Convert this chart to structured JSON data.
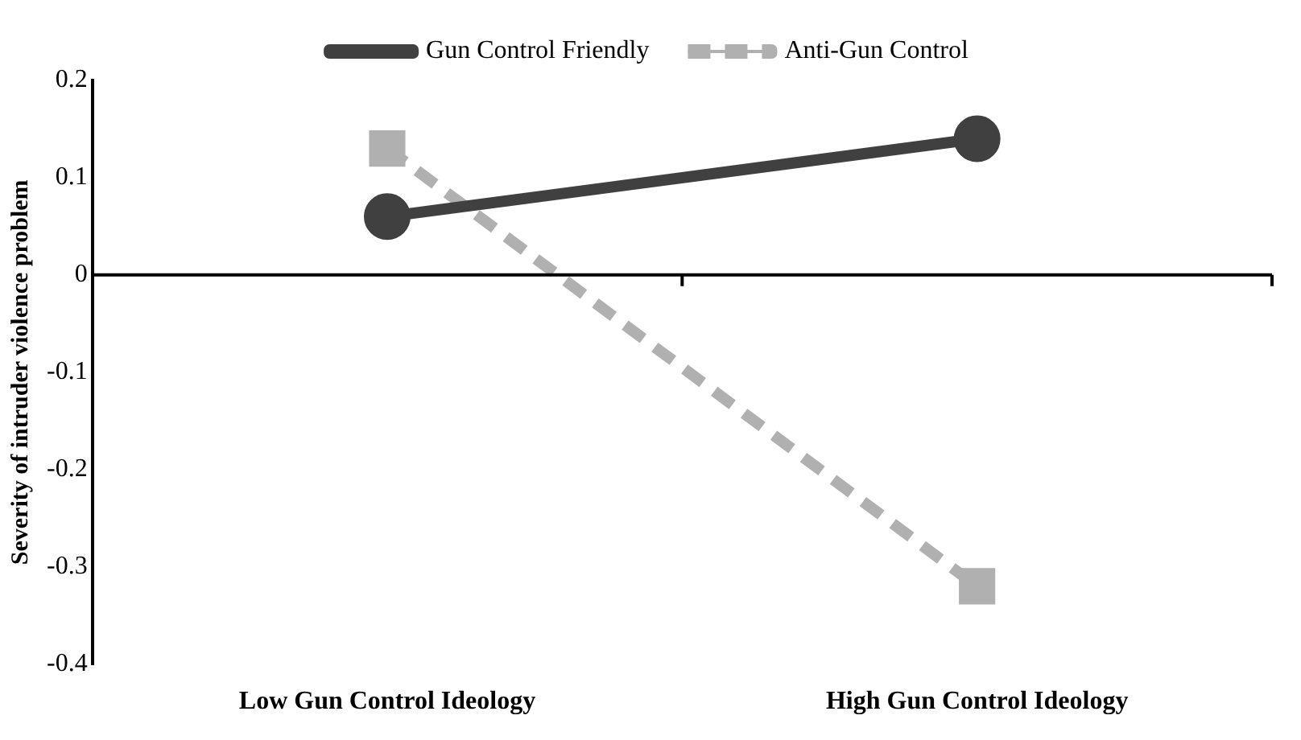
{
  "chart_data": {
    "type": "line",
    "ylabel": "Severity of intruder violence problem",
    "categories": [
      "Low Gun Control Ideology",
      "High Gun Control Ideology"
    ],
    "series": [
      {
        "name": "Gun Control Friendly",
        "color": "#404040",
        "values": [
          0.06,
          0.14
        ],
        "marker": "circle",
        "line_style": "solid"
      },
      {
        "name": "Anti-Gun Control",
        "color": "#b0b0b0",
        "values": [
          0.13,
          -0.32
        ],
        "marker": "square",
        "line_style": "dashed"
      }
    ],
    "ylim": [
      -0.4,
      0.2
    ],
    "yticks": [
      -0.4,
      -0.3,
      -0.2,
      -0.1,
      0,
      0.1,
      0.2
    ],
    "ref_lines": [
      {
        "axis": "y",
        "value": 0,
        "color": "#000000"
      }
    ],
    "grid": false,
    "legend": "top"
  }
}
